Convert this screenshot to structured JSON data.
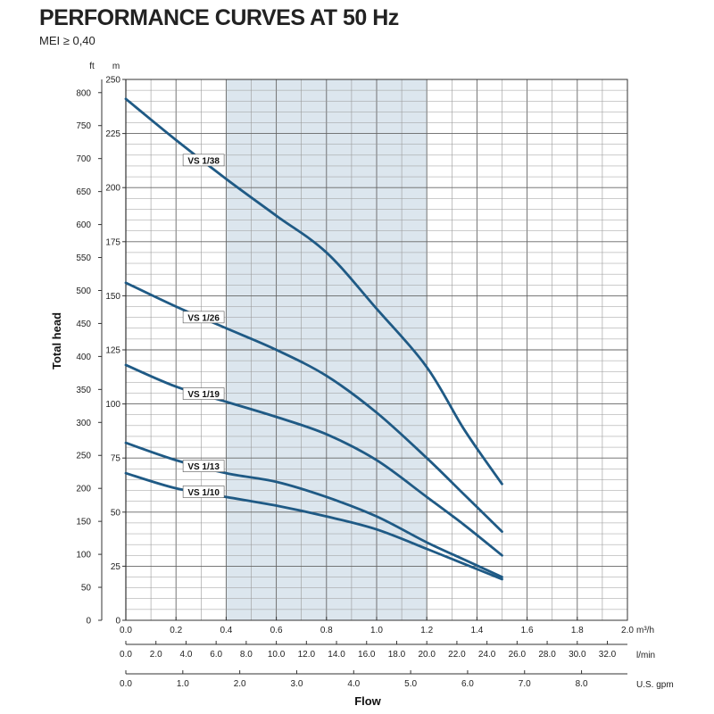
{
  "title": "PERFORMANCE CURVES AT 50 Hz",
  "subtitle": "MEI ≥ 0,40",
  "chart_data": {
    "type": "line",
    "xlabel": "Flow",
    "ylabel": "Total head",
    "x_units": {
      "m3h": "m³/h",
      "lmin": "l/min",
      "gpm": "U.S. gpm"
    },
    "y_units": {
      "ft": "ft",
      "m": "m"
    },
    "xlim": [
      0,
      2.0
    ],
    "ylim_m": [
      0,
      250
    ],
    "ylim_ft": [
      0,
      820
    ],
    "highlight_band_m3h": [
      0.4,
      1.2
    ],
    "grid": true,
    "x_ticks_m3h": [
      "0.0",
      "0.2",
      "0.4",
      "0.6",
      "0.8",
      "1.0",
      "1.2",
      "1.4",
      "1.6",
      "1.8",
      "2.0"
    ],
    "x_ticks_lmin": [
      "0.0",
      "2.0",
      "4.0",
      "6.0",
      "8.0",
      "10.0",
      "12.0",
      "14.0",
      "16.0",
      "18.0",
      "20.0",
      "22.0",
      "24.0",
      "26.0",
      "28.0",
      "30.0",
      "32.0"
    ],
    "x_ticks_gpm": [
      "0.0",
      "1.0",
      "2.0",
      "3.0",
      "4.0",
      "5.0",
      "6.0",
      "7.0",
      "8.0"
    ],
    "y_ticks_m": [
      "0",
      "25",
      "50",
      "75",
      "100",
      "125",
      "150",
      "175",
      "200",
      "225",
      "250"
    ],
    "y_ticks_ft": [
      "0",
      "50",
      "100",
      "150",
      "200",
      "250",
      "300",
      "350",
      "400",
      "450",
      "500",
      "550",
      "600",
      "650",
      "700",
      "750",
      "800"
    ],
    "color": "#1f5a85",
    "band_color": "#dce6ee",
    "series": [
      {
        "name": "VS 1/38",
        "x": [
          0,
          0.2,
          0.4,
          0.6,
          0.8,
          1.0,
          1.2,
          1.35,
          1.5
        ],
        "y": [
          241,
          222,
          204,
          187,
          170,
          144,
          117,
          88,
          63
        ]
      },
      {
        "name": "VS 1/26",
        "x": [
          0,
          0.2,
          0.4,
          0.6,
          0.8,
          1.0,
          1.2,
          1.35,
          1.5
        ],
        "y": [
          156,
          145,
          135,
          125,
          113,
          96,
          75,
          58,
          41
        ]
      },
      {
        "name": "VS 1/19",
        "x": [
          0,
          0.2,
          0.4,
          0.6,
          0.8,
          1.0,
          1.2,
          1.35,
          1.5
        ],
        "y": [
          118,
          108,
          101,
          94,
          86,
          74,
          57,
          44,
          30
        ]
      },
      {
        "name": "VS 1/13",
        "x": [
          0,
          0.2,
          0.4,
          0.6,
          0.8,
          1.0,
          1.2,
          1.35,
          1.5
        ],
        "y": [
          82,
          74,
          68,
          64,
          57,
          48,
          36,
          28,
          20
        ]
      },
      {
        "name": "VS 1/10",
        "x": [
          0,
          0.2,
          0.4,
          0.6,
          0.8,
          1.0,
          1.2,
          1.35,
          1.5
        ],
        "y": [
          68,
          61,
          57,
          53,
          48,
          42,
          33,
          26,
          19
        ]
      }
    ]
  }
}
